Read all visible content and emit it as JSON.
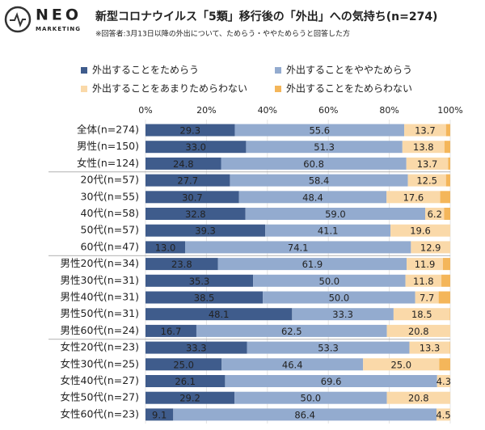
{
  "header": {
    "logo": "NEO",
    "logo_sub": "MARKETING"
  },
  "chart_data": {
    "type": "stacked-bar-horizontal",
    "title": "新型コロナウイルス「5類」移行後の「外出」への気持ち(n=274)",
    "subtitle": "※回答者:3月13日以降の外出について、ためらう・ややためらうと回答した方",
    "categories": [
      "全体(n=274)",
      "男性(n=150)",
      "女性(n=124)",
      "20代(n=57)",
      "30代(n=55)",
      "40代(n=58)",
      "50代(n=57)",
      "60代(n=47)",
      "男性20代(n=34)",
      "男性30代(n=31)",
      "男性40代(n=31)",
      "男性50代(n=31)",
      "男性60代(n=24)",
      "女性20代(n=23)",
      "女性30代(n=25)",
      "女性40代(n=27)",
      "女性50代(n=27)",
      "女性60代(n=23)"
    ],
    "series": [
      {
        "name": "外出することをためらう",
        "color": "#3f5c8c",
        "values": [
          29.3,
          33.0,
          24.8,
          27.7,
          30.7,
          32.8,
          39.3,
          13.0,
          23.8,
          35.3,
          38.5,
          48.1,
          16.7,
          33.3,
          25.0,
          26.1,
          29.2,
          9.1
        ],
        "value_labels": [
          "29.3",
          "33.0",
          "24.8",
          "27.7",
          "30.7",
          "32.8",
          "39.3",
          "13.0",
          "23.8",
          "35.3",
          "38.5",
          "48.1",
          "16.7",
          "33.3",
          "25.0",
          "26.1",
          "29.2",
          "9.1"
        ]
      },
      {
        "name": "外出することをややためらう",
        "color": "#93abcf",
        "values": [
          55.6,
          51.3,
          60.8,
          58.4,
          48.4,
          59.0,
          41.1,
          74.1,
          61.9,
          50.0,
          50.0,
          33.3,
          62.5,
          53.3,
          46.4,
          69.6,
          50.0,
          86.4
        ],
        "value_labels": [
          "55.6",
          "51.3",
          "60.8",
          "58.4",
          "48.4",
          "59.0",
          "41.1",
          "74.1",
          "61.9",
          "50.0",
          "50.0",
          "33.3",
          "62.5",
          "53.3",
          "46.4",
          "69.6",
          "50.0",
          "86.4"
        ]
      },
      {
        "name": "外出することをあまりためらわない",
        "color": "#fad9a9",
        "values": [
          13.7,
          13.8,
          13.7,
          12.5,
          17.6,
          6.2,
          19.6,
          12.9,
          11.9,
          11.8,
          7.7,
          18.5,
          20.8,
          13.3,
          25.0,
          4.3,
          20.8,
          4.5
        ],
        "value_labels": [
          "13.7",
          "13.8",
          "13.7",
          "12.5",
          "17.6",
          "6.2",
          "19.6",
          "12.9",
          "11.9",
          "11.8",
          "7.7",
          "18.5",
          "20.8",
          "13.3",
          "25.0",
          "4.3",
          "20.8",
          "4.5"
        ]
      },
      {
        "name": "外出することをためらわない",
        "color": "#f4b65a",
        "values": [
          1.4,
          1.9,
          0.7,
          1.4,
          3.3,
          2.0,
          0,
          0,
          2.4,
          2.9,
          3.8,
          0.1,
          0,
          0.1,
          3.6,
          0,
          0,
          0
        ]
      }
    ],
    "xlim": [
      0,
      100
    ],
    "xticks": [
      {
        "value": 0,
        "label": "0%"
      },
      {
        "value": 20,
        "label": "20%"
      },
      {
        "value": 40,
        "label": "40%"
      },
      {
        "value": 60,
        "label": "60%"
      },
      {
        "value": 80,
        "label": "80%"
      },
      {
        "value": 100,
        "label": "100%"
      }
    ],
    "grid": true
  }
}
